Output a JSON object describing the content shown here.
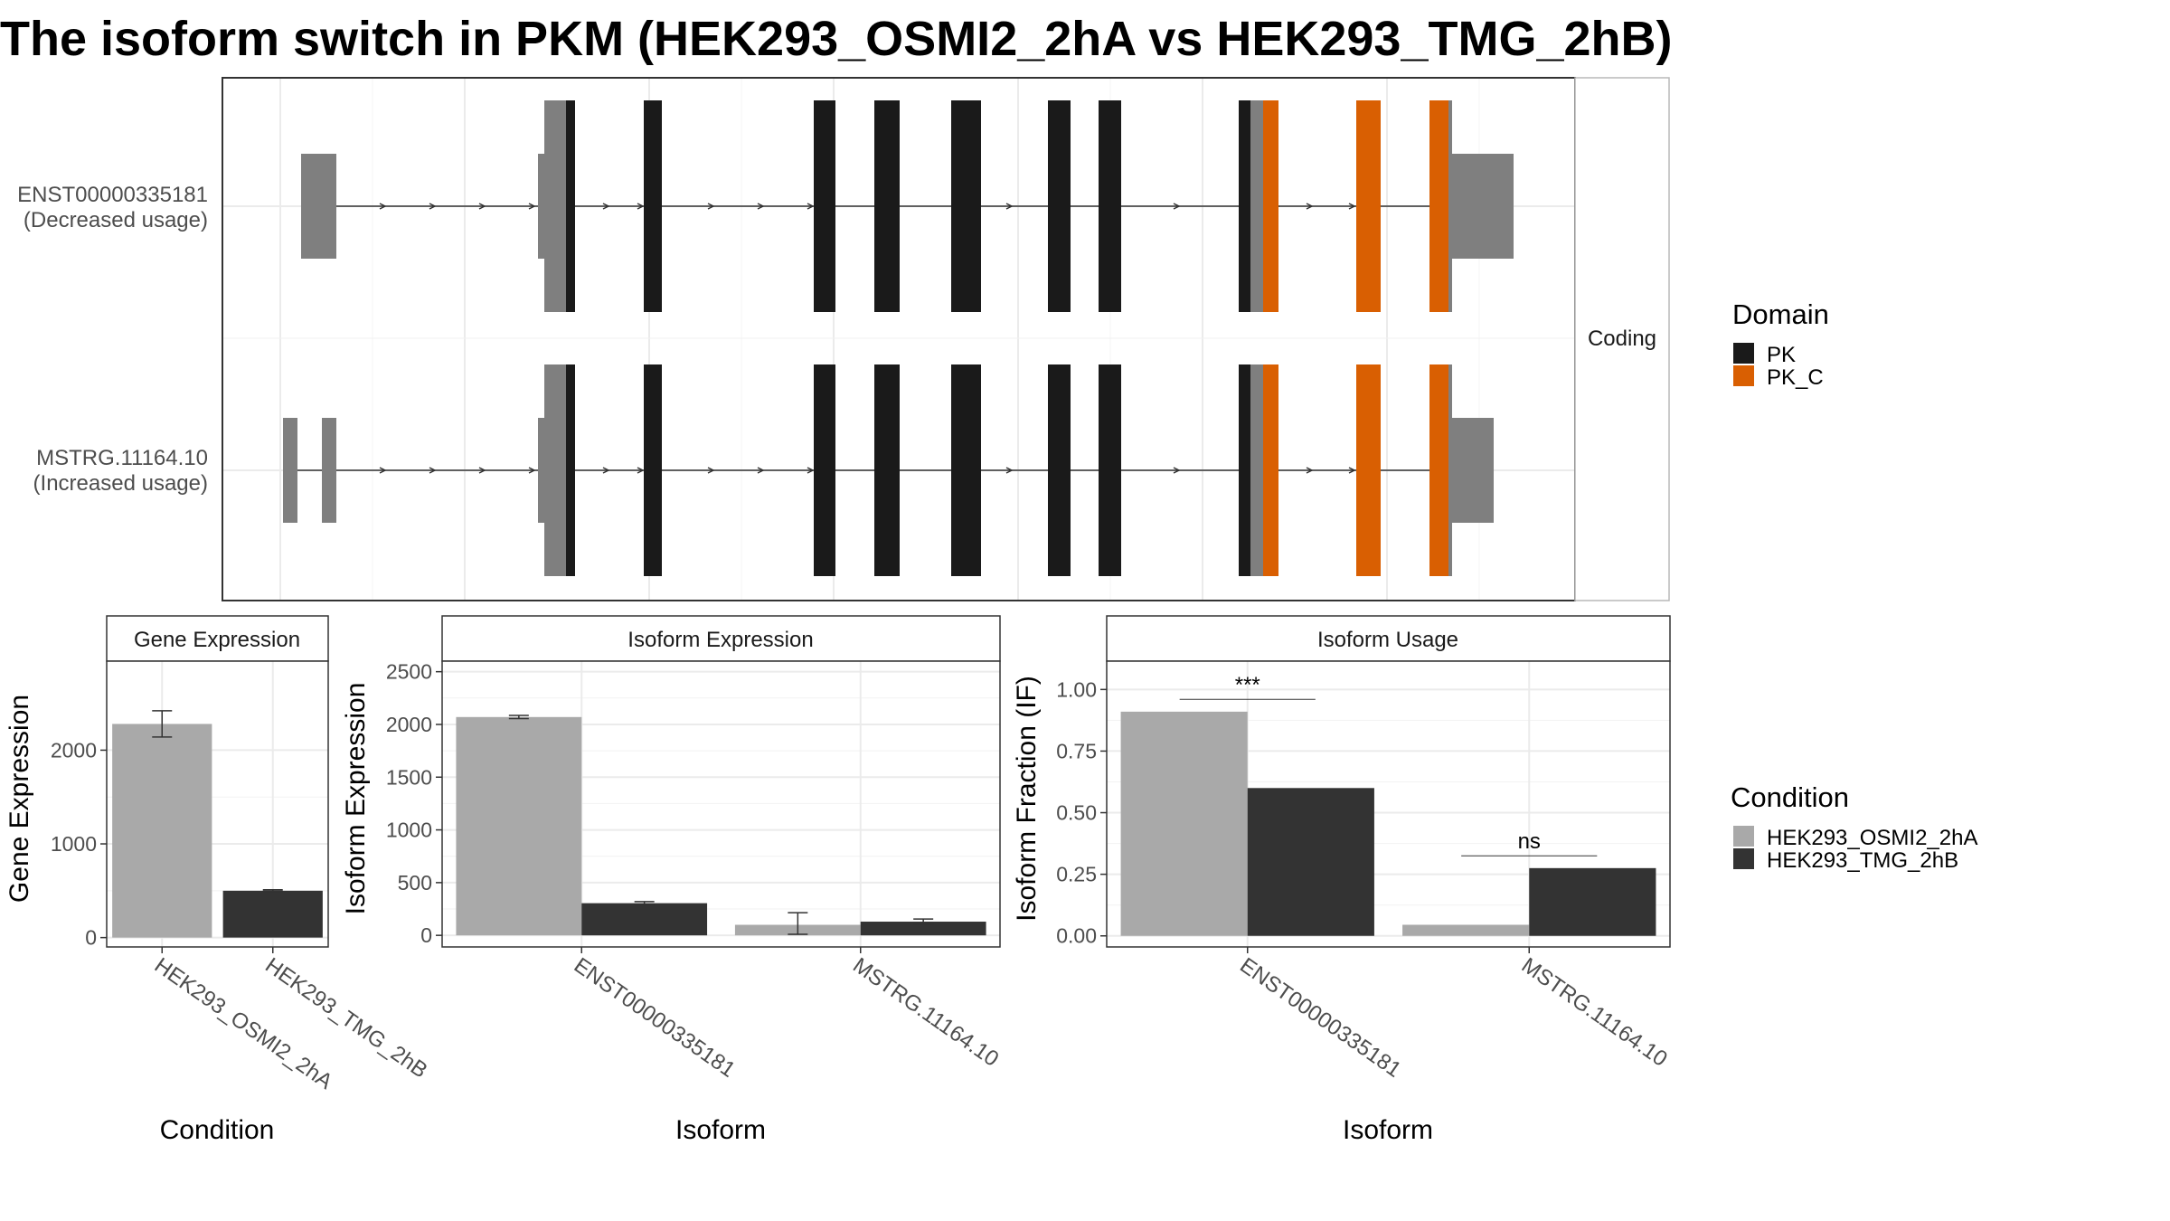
{
  "title": "The isoform switch in PKM (HEK293_OSMI2_2hA vs HEK293_TMG_2hB)",
  "colors": {
    "PK": "#1a1a1a",
    "PK_C": "#d95f02",
    "utr": "#7f7f7f",
    "cond_a": "#a9a9a9",
    "cond_b": "#333333"
  },
  "structure": {
    "strip_label": "Coding",
    "isoforms": [
      {
        "id": "ENST00000335181",
        "label": "ENST00000335181",
        "usage": "(Decreased usage)"
      },
      {
        "id": "MSTRG.11164.10",
        "label": "MSTRG.11164.10",
        "usage": "(Increased usage)"
      }
    ],
    "domain_legend": {
      "title": "Domain",
      "items": [
        {
          "name": "PK",
          "color": "#1a1a1a"
        },
        {
          "name": "PK_C",
          "color": "#d95f02"
        }
      ]
    }
  },
  "condition_legend": {
    "title": "Condition",
    "items": [
      {
        "name": "HEK293_OSMI2_2hA",
        "color": "#a9a9a9"
      },
      {
        "name": "HEK293_TMG_2hB",
        "color": "#333333"
      }
    ]
  },
  "chart_data": [
    {
      "type": "bar",
      "title": "Gene Expression",
      "xlabel": "Condition",
      "ylabel": "Gene Expression",
      "categories": [
        "HEK293_OSMI2_2hA",
        "HEK293_TMG_2hB"
      ],
      "values": [
        2280,
        500
      ],
      "errors": [
        [
          2140,
          2420
        ],
        [
          495,
          510
        ]
      ],
      "ylim": [
        -100,
        2950
      ],
      "yticks": [
        "0",
        "1000",
        "2000"
      ],
      "ytick_values": [
        0,
        1000,
        2000
      ],
      "grid": true
    },
    {
      "type": "bar",
      "title": "Isoform Expression",
      "xlabel": "Isoform",
      "ylabel": "Isoform Expression",
      "categories": [
        "ENST00000335181",
        "MSTRG.11164.10"
      ],
      "series": [
        {
          "name": "HEK293_OSMI2_2hA",
          "values": [
            2070,
            100
          ],
          "errors": [
            [
              2055,
              2085
            ],
            [
              10,
              215
            ]
          ]
        },
        {
          "name": "HEK293_TMG_2hB",
          "values": [
            305,
            130
          ],
          "errors": [
            [
              290,
              320
            ],
            [
              105,
              155
            ]
          ]
        }
      ],
      "ylim": [
        -110,
        2600
      ],
      "yticks": [
        "0",
        "500",
        "1000",
        "1500",
        "2000",
        "2500"
      ],
      "ytick_values": [
        0,
        500,
        1000,
        1500,
        2000,
        2500
      ],
      "grid": true
    },
    {
      "type": "bar",
      "title": "Isoform Usage",
      "xlabel": "Isoform",
      "ylabel": "Isoform Fraction (IF)",
      "categories": [
        "ENST00000335181",
        "MSTRG.11164.10"
      ],
      "series": [
        {
          "name": "HEK293_OSMI2_2hA",
          "values": [
            0.91,
            0.045
          ]
        },
        {
          "name": "HEK293_TMG_2hB",
          "values": [
            0.6,
            0.275
          ]
        }
      ],
      "significance": [
        {
          "label": "***",
          "y": 0.96
        },
        {
          "label": "ns",
          "y": 0.325
        }
      ],
      "ylim": [
        -0.045,
        1.115
      ],
      "yticks": [
        "0.00",
        "0.25",
        "0.50",
        "0.75",
        "1.00"
      ],
      "ytick_values": [
        0,
        0.25,
        0.5,
        0.75,
        1.0
      ],
      "grid": true
    }
  ]
}
